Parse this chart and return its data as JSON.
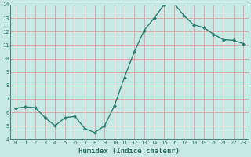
{
  "x": [
    0,
    1,
    2,
    3,
    4,
    5,
    6,
    7,
    8,
    9,
    10,
    11,
    12,
    13,
    14,
    15,
    16,
    17,
    18,
    19,
    20,
    21,
    22,
    23
  ],
  "y": [
    6.3,
    6.4,
    6.35,
    5.6,
    5.0,
    5.6,
    5.7,
    4.8,
    4.5,
    5.0,
    6.5,
    8.6,
    10.5,
    12.1,
    13.0,
    14.0,
    14.1,
    13.2,
    12.5,
    12.3,
    11.8,
    11.4,
    11.35,
    11.1
  ],
  "xlabel": "Humidex (Indice chaleur)",
  "ylim": [
    4,
    14
  ],
  "xlim": [
    -0.5,
    23.5
  ],
  "yticks": [
    4,
    5,
    6,
    7,
    8,
    9,
    10,
    11,
    12,
    13,
    14
  ],
  "xticks": [
    0,
    1,
    2,
    3,
    4,
    5,
    6,
    7,
    8,
    9,
    10,
    11,
    12,
    13,
    14,
    15,
    16,
    17,
    18,
    19,
    20,
    21,
    22,
    23
  ],
  "line_color": "#2e7d6e",
  "marker": "D",
  "marker_size": 2.0,
  "bg_color": "#c8e8e4",
  "grid_color": "#d8a0a0",
  "tick_label_color": "#2e6e62",
  "xlabel_color": "#2e6e62",
  "line_width": 1.0,
  "tick_fontsize": 5.0,
  "xlabel_fontsize": 6.5
}
